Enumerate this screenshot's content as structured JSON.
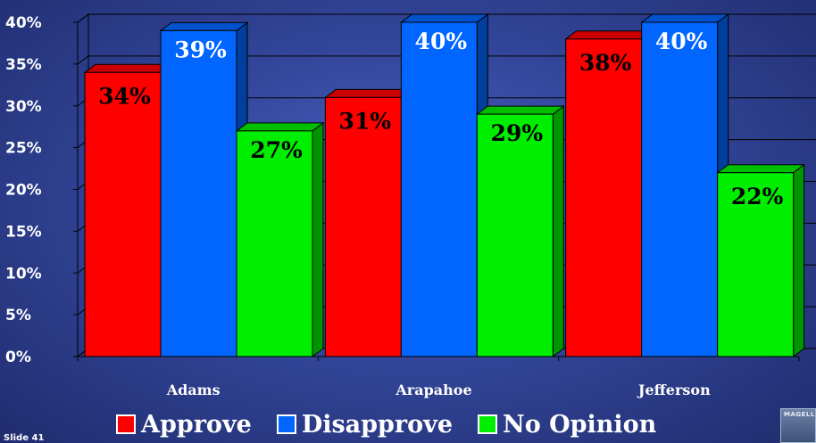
{
  "chart_data": {
    "type": "bar",
    "title": "",
    "xlabel": "",
    "ylabel": "",
    "categories": [
      "Adams",
      "Arapahoe",
      "Jefferson"
    ],
    "series": [
      {
        "name": "Approve",
        "values": [
          34,
          31,
          38
        ],
        "labels": [
          "34%",
          "31%",
          "38%"
        ],
        "color": "#ff0000"
      },
      {
        "name": "Disapprove",
        "values": [
          39,
          40,
          40
        ],
        "labels": [
          "39%",
          "40%",
          "40%"
        ],
        "color": "#0066ff"
      },
      {
        "name": "No Opinion",
        "values": [
          27,
          29,
          22
        ],
        "labels": [
          "27%",
          "29%",
          "22%"
        ],
        "color": "#00ee00"
      }
    ],
    "ylim": [
      0,
      40
    ],
    "yticks": [
      0,
      5,
      10,
      15,
      20,
      25,
      30,
      35,
      40
    ],
    "ytick_labels": [
      "0%",
      "5%",
      "10%",
      "15%",
      "20%",
      "25%",
      "30%",
      "35%",
      "40%"
    ],
    "grid": true,
    "legend_position": "bottom"
  },
  "legend": {
    "approve": "Approve",
    "disapprove": "Disapprove",
    "no_opinion": "No Opinion"
  },
  "footer": {
    "slide_number": "Slide 41",
    "logo_text": "MAGELL"
  },
  "colors": {
    "approve": "#ff0000",
    "disapprove": "#0066ff",
    "no_opinion": "#00ee00",
    "background": "#33469a"
  }
}
